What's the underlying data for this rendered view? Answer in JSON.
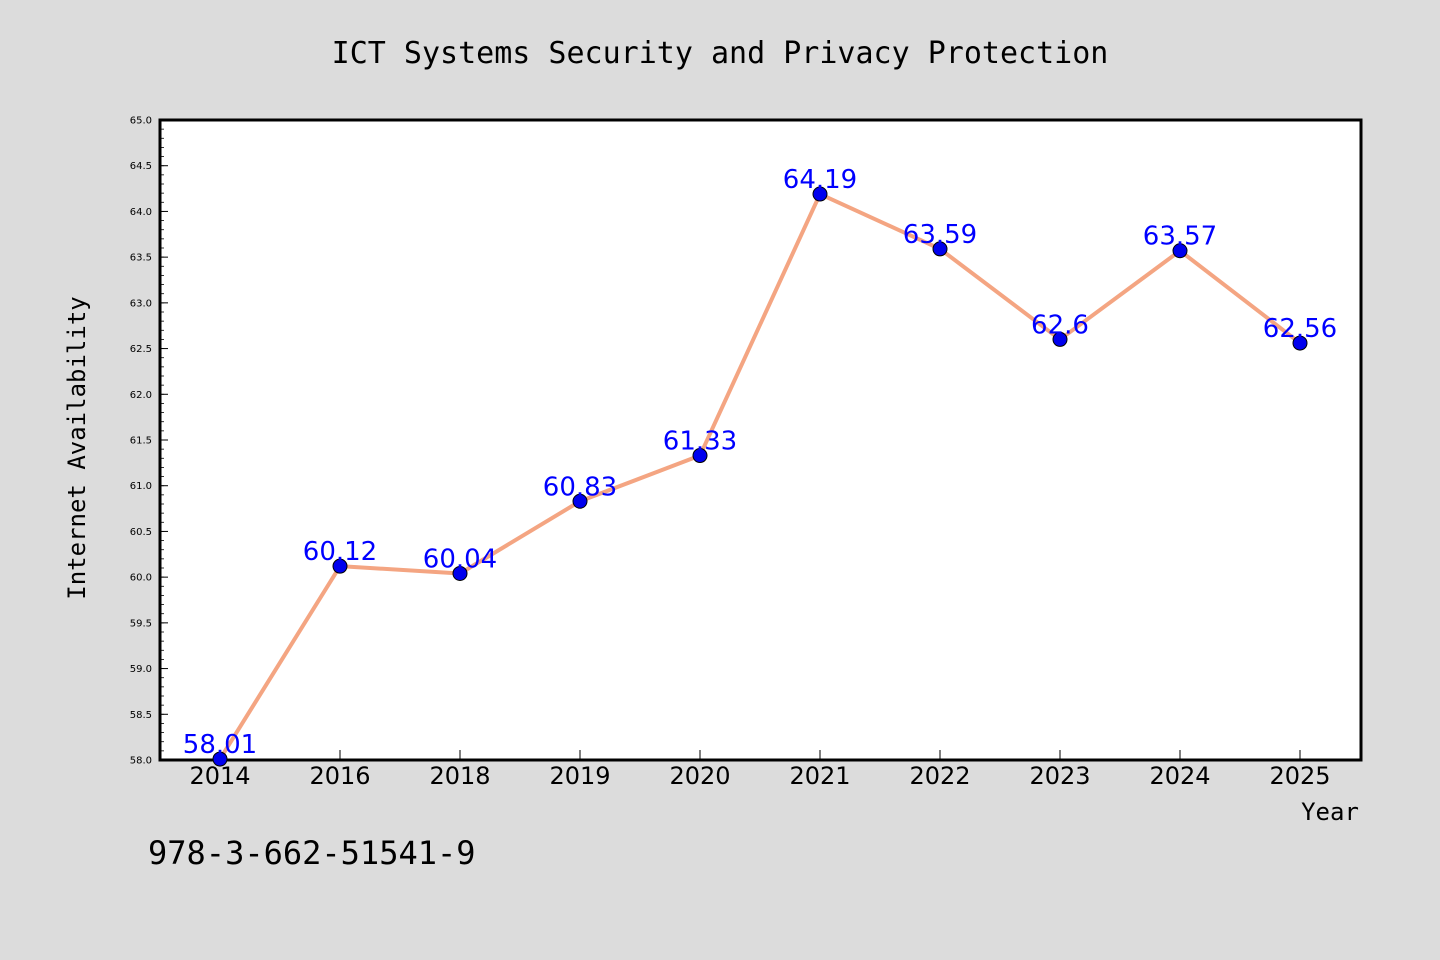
{
  "chart_data": {
    "type": "line",
    "title": "ICT Systems Security and Privacy Protection",
    "xlabel": "Year",
    "ylabel": "Internet Availability",
    "categories": [
      "2014",
      "2016",
      "2018",
      "2019",
      "2020",
      "2021",
      "2022",
      "2023",
      "2024",
      "2025"
    ],
    "series": [
      {
        "values": [
          58.01,
          60.12,
          60.04,
          60.83,
          61.33,
          64.19,
          63.59,
          62.6,
          63.57,
          62.56
        ],
        "data_labels": [
          "58.01",
          "60.12",
          "60.04",
          "60.83",
          "61.33",
          "64.19",
          "63.59",
          "62.6",
          "63.57",
          "62.56"
        ],
        "line_color": "#f4a582",
        "marker_color": "#0000ee"
      }
    ],
    "ylim": [
      58.0,
      65.0
    ],
    "yticks": [
      "58.0",
      "58.5",
      "59.0",
      "59.5",
      "60.0",
      "60.5",
      "61.0",
      "61.5",
      "62.0",
      "62.5",
      "63.0",
      "63.5",
      "64.0",
      "64.5",
      "65.0"
    ],
    "grid": false,
    "legend": "none"
  },
  "footer": {
    "isbn": "978-3-662-51541-9"
  },
  "colors": {
    "background": "#dcdcdc",
    "plot_background": "#ffffff",
    "label_color": "#0000ff"
  }
}
